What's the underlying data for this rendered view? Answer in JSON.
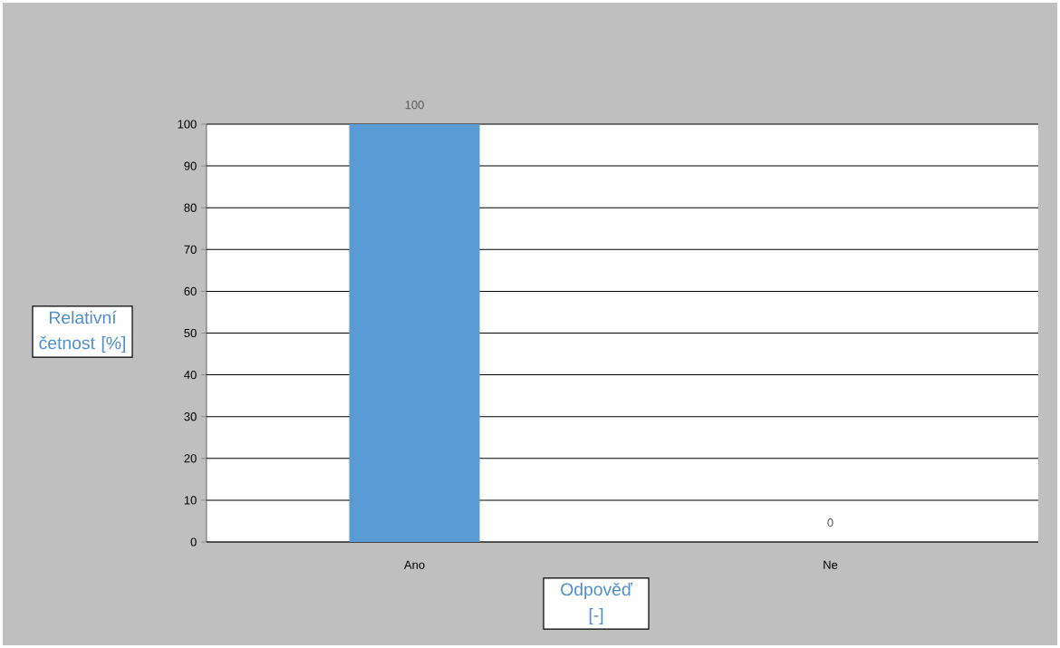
{
  "chart_data": {
    "type": "bar",
    "categories": [
      "Ano",
      "Ne"
    ],
    "values": [
      100,
      0
    ],
    "color": "#5b9bd5",
    "xlabel": "Odpověď [-]",
    "ylabel": "Relativní četnost [%]",
    "ylim": [
      0,
      100
    ],
    "yticks": [
      0,
      10,
      20,
      30,
      40,
      50,
      60,
      70,
      80,
      90,
      100
    ],
    "grid": "y",
    "data_labels": true
  }
}
